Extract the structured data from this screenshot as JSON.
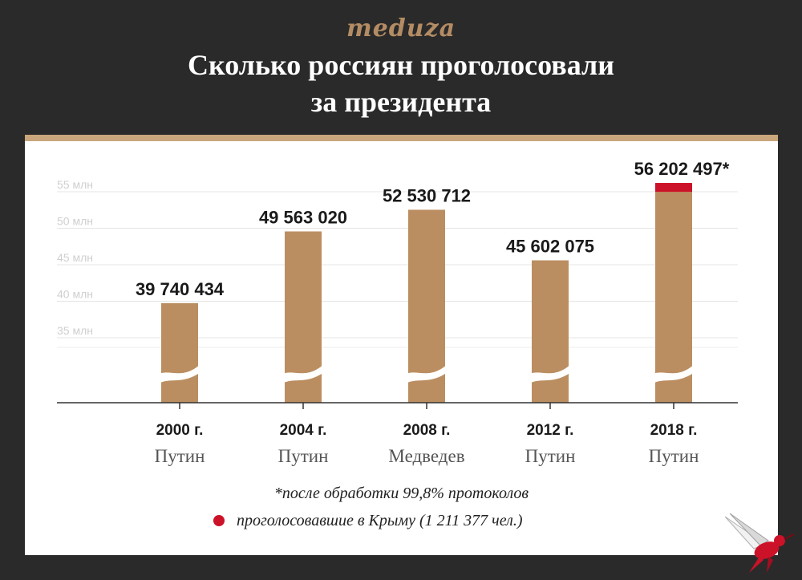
{
  "header": {
    "logo": "meduza",
    "title_line1": "Сколько россиян проголосовали",
    "title_line2": "за президента"
  },
  "colors": {
    "bar": "#bb8e61",
    "crimea": "#cc1228",
    "background": "#2a2a2a",
    "card_accent": "#c9a67b"
  },
  "chart_data": {
    "type": "bar",
    "title": "Сколько россиян проголосовали за президента",
    "categories": [
      "2000 г.",
      "2004 г.",
      "2008 г.",
      "2012 г.",
      "2018 г."
    ],
    "candidates": [
      "Путин",
      "Путин",
      "Медведев",
      "Путин",
      "Путин"
    ],
    "values": [
      39740434,
      49563020,
      52530712,
      45602075,
      56202497
    ],
    "value_labels": [
      "39 740 434",
      "49 563 020",
      "52 530 712",
      "45 602 075",
      "56 202 497*"
    ],
    "crimea_votes": 1211377,
    "y_ticks": [
      35,
      40,
      45,
      50,
      55
    ],
    "y_tick_labels": [
      "35 млн",
      "40 млн",
      "45 млн",
      "50 млн",
      "55 млн"
    ],
    "y_unit": "млн",
    "axis_break": true,
    "grid": true
  },
  "footnote": "*после обработки 99,8% протоколов",
  "legend": {
    "crimea_label": "проголосовавшие в Крыму (1 211 377 чел.)"
  },
  "bird_icon": "hummingbird-icon"
}
